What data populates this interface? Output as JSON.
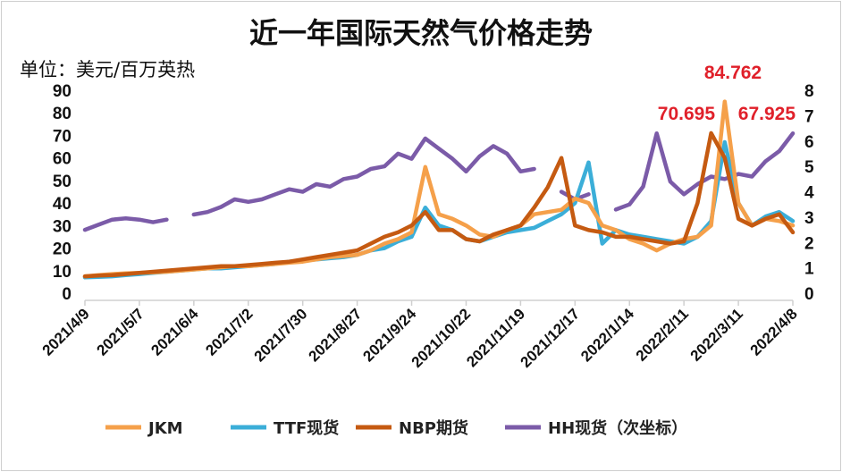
{
  "chart_data": {
    "type": "line",
    "title": "近一年国际天然气价格走势",
    "ylabel": "单位：美元/百万英热",
    "ylim": [
      0,
      90
    ],
    "y2lim": [
      0,
      8
    ],
    "yticks": [
      "0",
      "10",
      "20",
      "30",
      "40",
      "50",
      "60",
      "70",
      "80",
      "90"
    ],
    "y2ticks": [
      "0",
      "1",
      "2",
      "3",
      "4",
      "5",
      "6",
      "7",
      "8"
    ],
    "xtick_labels": [
      "2021/4/9",
      "2021/5/7",
      "2021/6/4",
      "2021/7/2",
      "2021/7/30",
      "2021/8/27",
      "2021/9/24",
      "2021/10/22",
      "2021/11/19",
      "2021/12/17",
      "2022/1/14",
      "2022/2/11",
      "2022/3/11",
      "2022/4/8"
    ],
    "x_unit": "weekly points from 2021/4/9 to 2022/4/8",
    "series": [
      {
        "name": "JKM",
        "axis": "left",
        "color": "#F5A04A",
        "values": [
          7.5,
          8,
          8.5,
          8.8,
          9,
          9.2,
          9.5,
          10,
          10.5,
          11,
          11.5,
          12,
          12,
          12.5,
          13,
          13.5,
          14,
          15,
          16,
          16.5,
          17,
          19,
          22,
          24,
          27,
          56,
          35,
          33,
          30,
          26,
          25,
          28,
          30,
          35,
          36,
          37,
          42,
          40,
          30,
          28,
          24,
          22,
          19,
          22,
          24,
          25,
          30,
          85,
          40,
          30,
          33,
          32,
          30
        ]
      },
      {
        "name": "TTF现货",
        "axis": "left",
        "color": "#3BAED8",
        "values": [
          7,
          7.2,
          7.5,
          8,
          8.5,
          9,
          9.5,
          10,
          10.5,
          11,
          11,
          11.5,
          12,
          12.5,
          13,
          14,
          14.5,
          15,
          15.5,
          16,
          17,
          19,
          20,
          23,
          25,
          38,
          30,
          28,
          24,
          23,
          25,
          27,
          28,
          29,
          32,
          35,
          40,
          58,
          22,
          28,
          26,
          25,
          24,
          23,
          22,
          25,
          32,
          67,
          40,
          30,
          34,
          36,
          32
        ]
      },
      {
        "name": "NBP期货",
        "axis": "left",
        "color": "#C55A11",
        "values": [
          7.5,
          7.8,
          8,
          8.5,
          9,
          9.5,
          10,
          10.5,
          11,
          11.5,
          12,
          12,
          12.5,
          13,
          13.5,
          14,
          15,
          16,
          17,
          18,
          19,
          22,
          25,
          27,
          30,
          36,
          28,
          28,
          24,
          23,
          26,
          28,
          30,
          38,
          47,
          60,
          30,
          28,
          27,
          25,
          25,
          24,
          23,
          22,
          23,
          40,
          71,
          60,
          33,
          30,
          33,
          35,
          27
        ]
      },
      {
        "name": "HH现货（次坐标）",
        "axis": "right",
        "color": "#7B5BA8",
        "values": [
          2.5,
          2.7,
          2.9,
          2.95,
          2.9,
          2.8,
          2.9,
          null,
          3.1,
          3.2,
          3.4,
          3.7,
          3.6,
          3.7,
          3.9,
          4.1,
          4.0,
          4.3,
          4.2,
          4.5,
          4.6,
          4.9,
          5.0,
          5.5,
          5.3,
          6.1,
          5.7,
          5.3,
          4.8,
          5.4,
          5.8,
          5.5,
          4.8,
          4.9,
          null,
          4.0,
          3.7,
          3.9,
          null,
          3.3,
          3.5,
          4.2,
          6.3,
          4.4,
          3.9,
          4.3,
          4.6,
          4.5,
          4.7,
          4.6,
          5.2,
          5.6,
          6.3
        ]
      }
    ],
    "annotations": [
      {
        "text": "70.695",
        "series": "NBP期货",
        "index": 46
      },
      {
        "text": "84.762",
        "series": "JKM",
        "index": 47
      },
      {
        "text": "67.925",
        "series": "TTF现货",
        "index": 47
      }
    ],
    "legend_position": "bottom",
    "grid": false
  }
}
